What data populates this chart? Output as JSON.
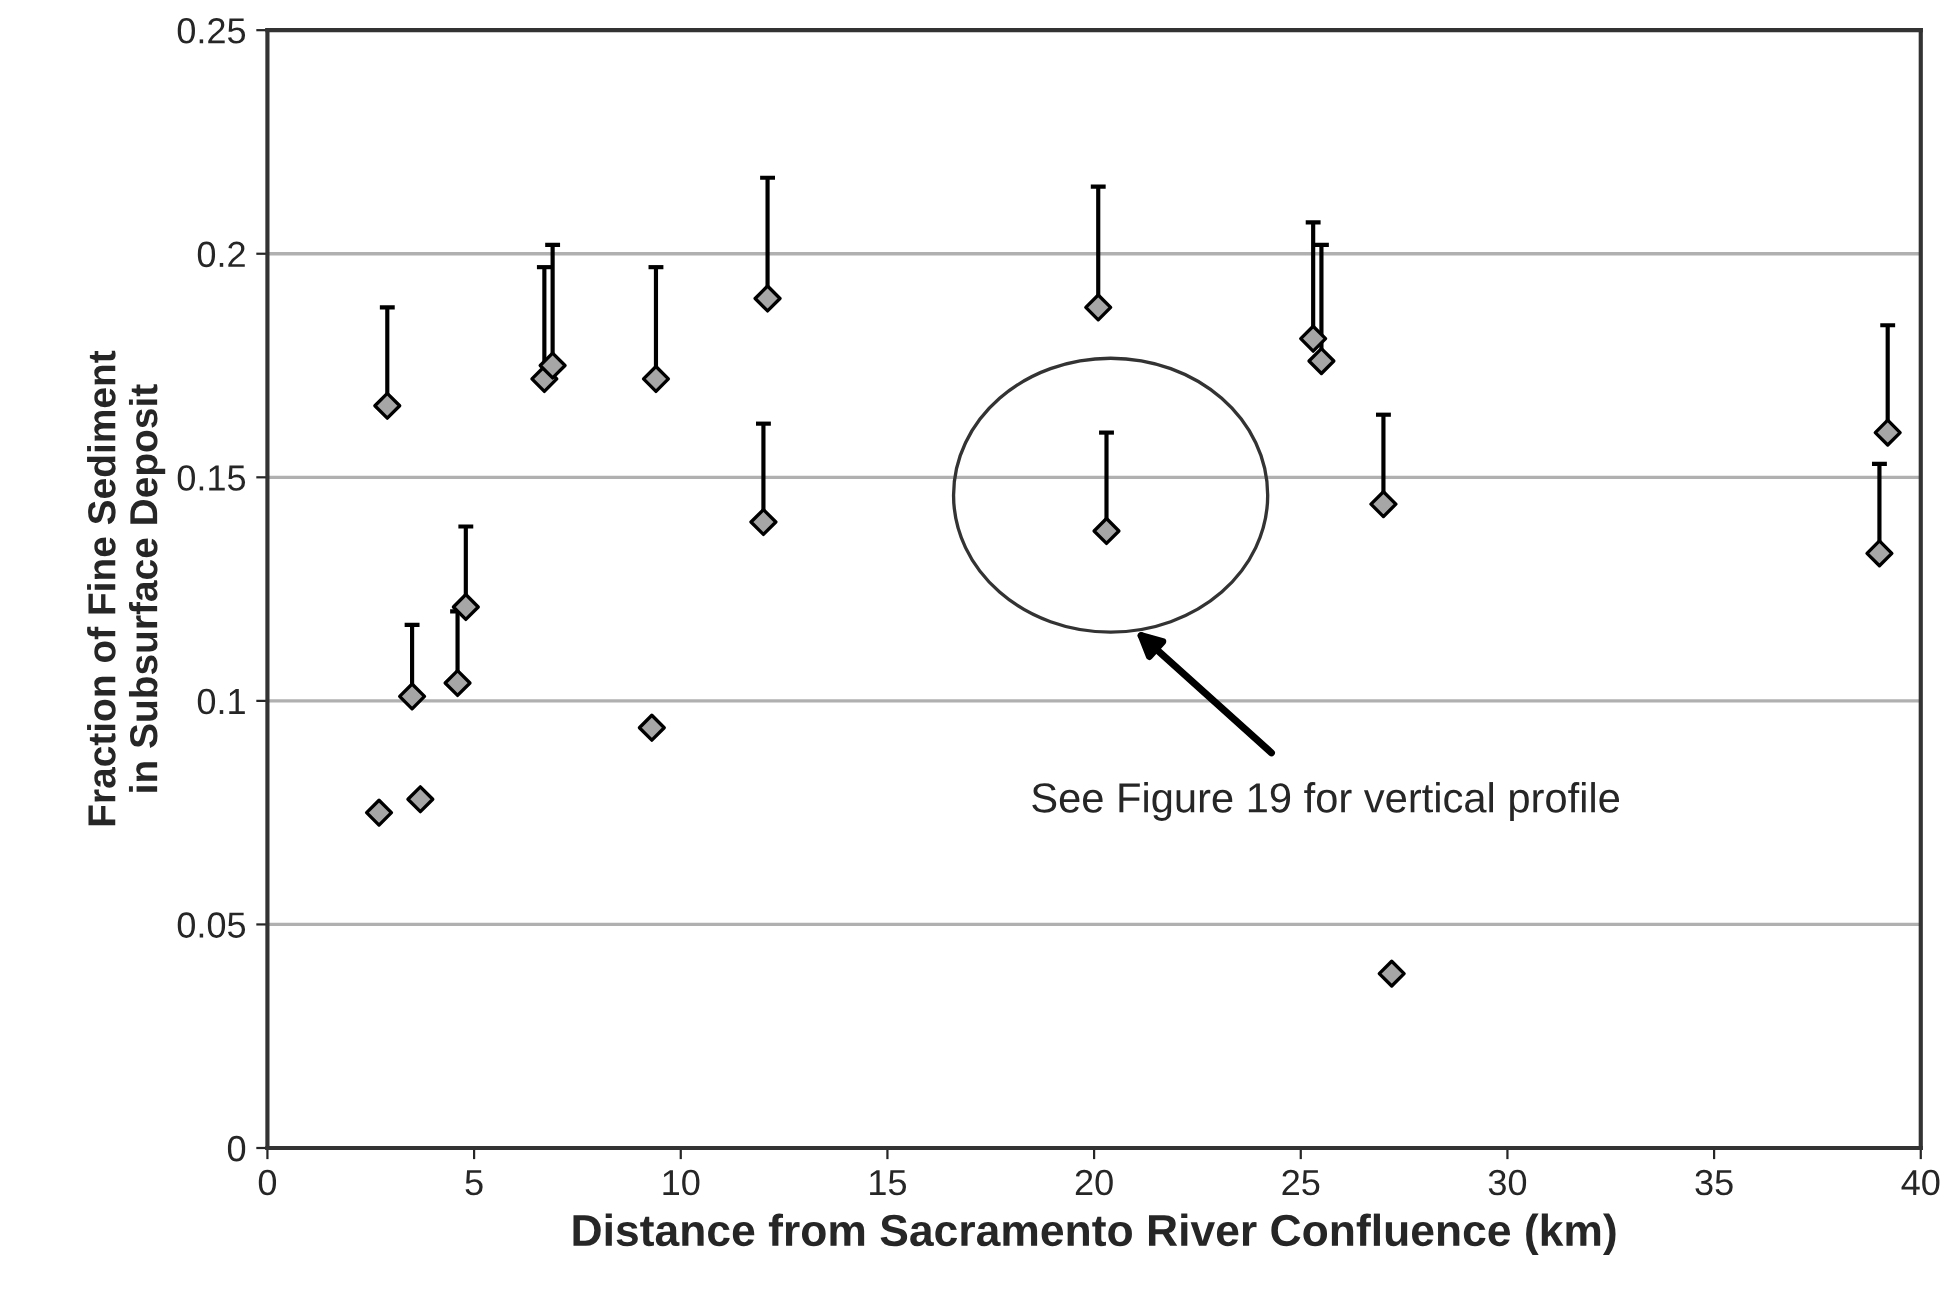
{
  "chart_data": {
    "type": "scatter",
    "xlabel": "Distance from Sacramento River Confluence (km)",
    "ylabel": "Fraction of Fine Sediment\nin Subsurface Deposit",
    "x": [
      2.7,
      2.9,
      3.5,
      3.7,
      4.6,
      4.8,
      6.7,
      6.9,
      9.3,
      9.4,
      12.0,
      12.1,
      20.1,
      20.3,
      25.3,
      25.5,
      27.0,
      27.2,
      39.0,
      39.2
    ],
    "series": [
      {
        "color": "#a6a6a6",
        "values": [
          0.075,
          0.166,
          0.101,
          0.078,
          0.104,
          0.121,
          0.172,
          0.175,
          0.094,
          0.172,
          0.14,
          0.19,
          0.188,
          0.138,
          0.181,
          0.176,
          0.144,
          0.039,
          0.133,
          0.16
        ],
        "errors": [
          null,
          [
            0.166,
            0.188
          ],
          [
            0.101,
            0.117
          ],
          null,
          [
            0.104,
            0.12
          ],
          [
            0.121,
            0.139
          ],
          [
            0.172,
            0.197
          ],
          [
            0.175,
            0.202
          ],
          null,
          [
            0.172,
            0.197
          ],
          [
            0.14,
            0.162
          ],
          [
            0.19,
            0.217
          ],
          [
            0.188,
            0.215
          ],
          [
            0.138,
            0.16
          ],
          [
            0.181,
            0.207
          ],
          [
            0.176,
            0.202
          ],
          [
            0.144,
            0.164
          ],
          null,
          [
            0.133,
            0.153
          ],
          [
            0.16,
            0.184
          ]
        ]
      }
    ],
    "marker": "diamond",
    "xlim": [
      0,
      40
    ],
    "xticks": [
      0,
      5,
      10,
      15,
      20,
      25,
      30,
      35,
      40
    ],
    "ylim": [
      0,
      0.25
    ],
    "yticks": [
      0,
      0.05,
      0.1,
      0.15,
      0.2,
      0.25
    ],
    "grid": "y",
    "legend": false,
    "annotations": [
      "See Figure 19 for vertical profile"
    ]
  }
}
